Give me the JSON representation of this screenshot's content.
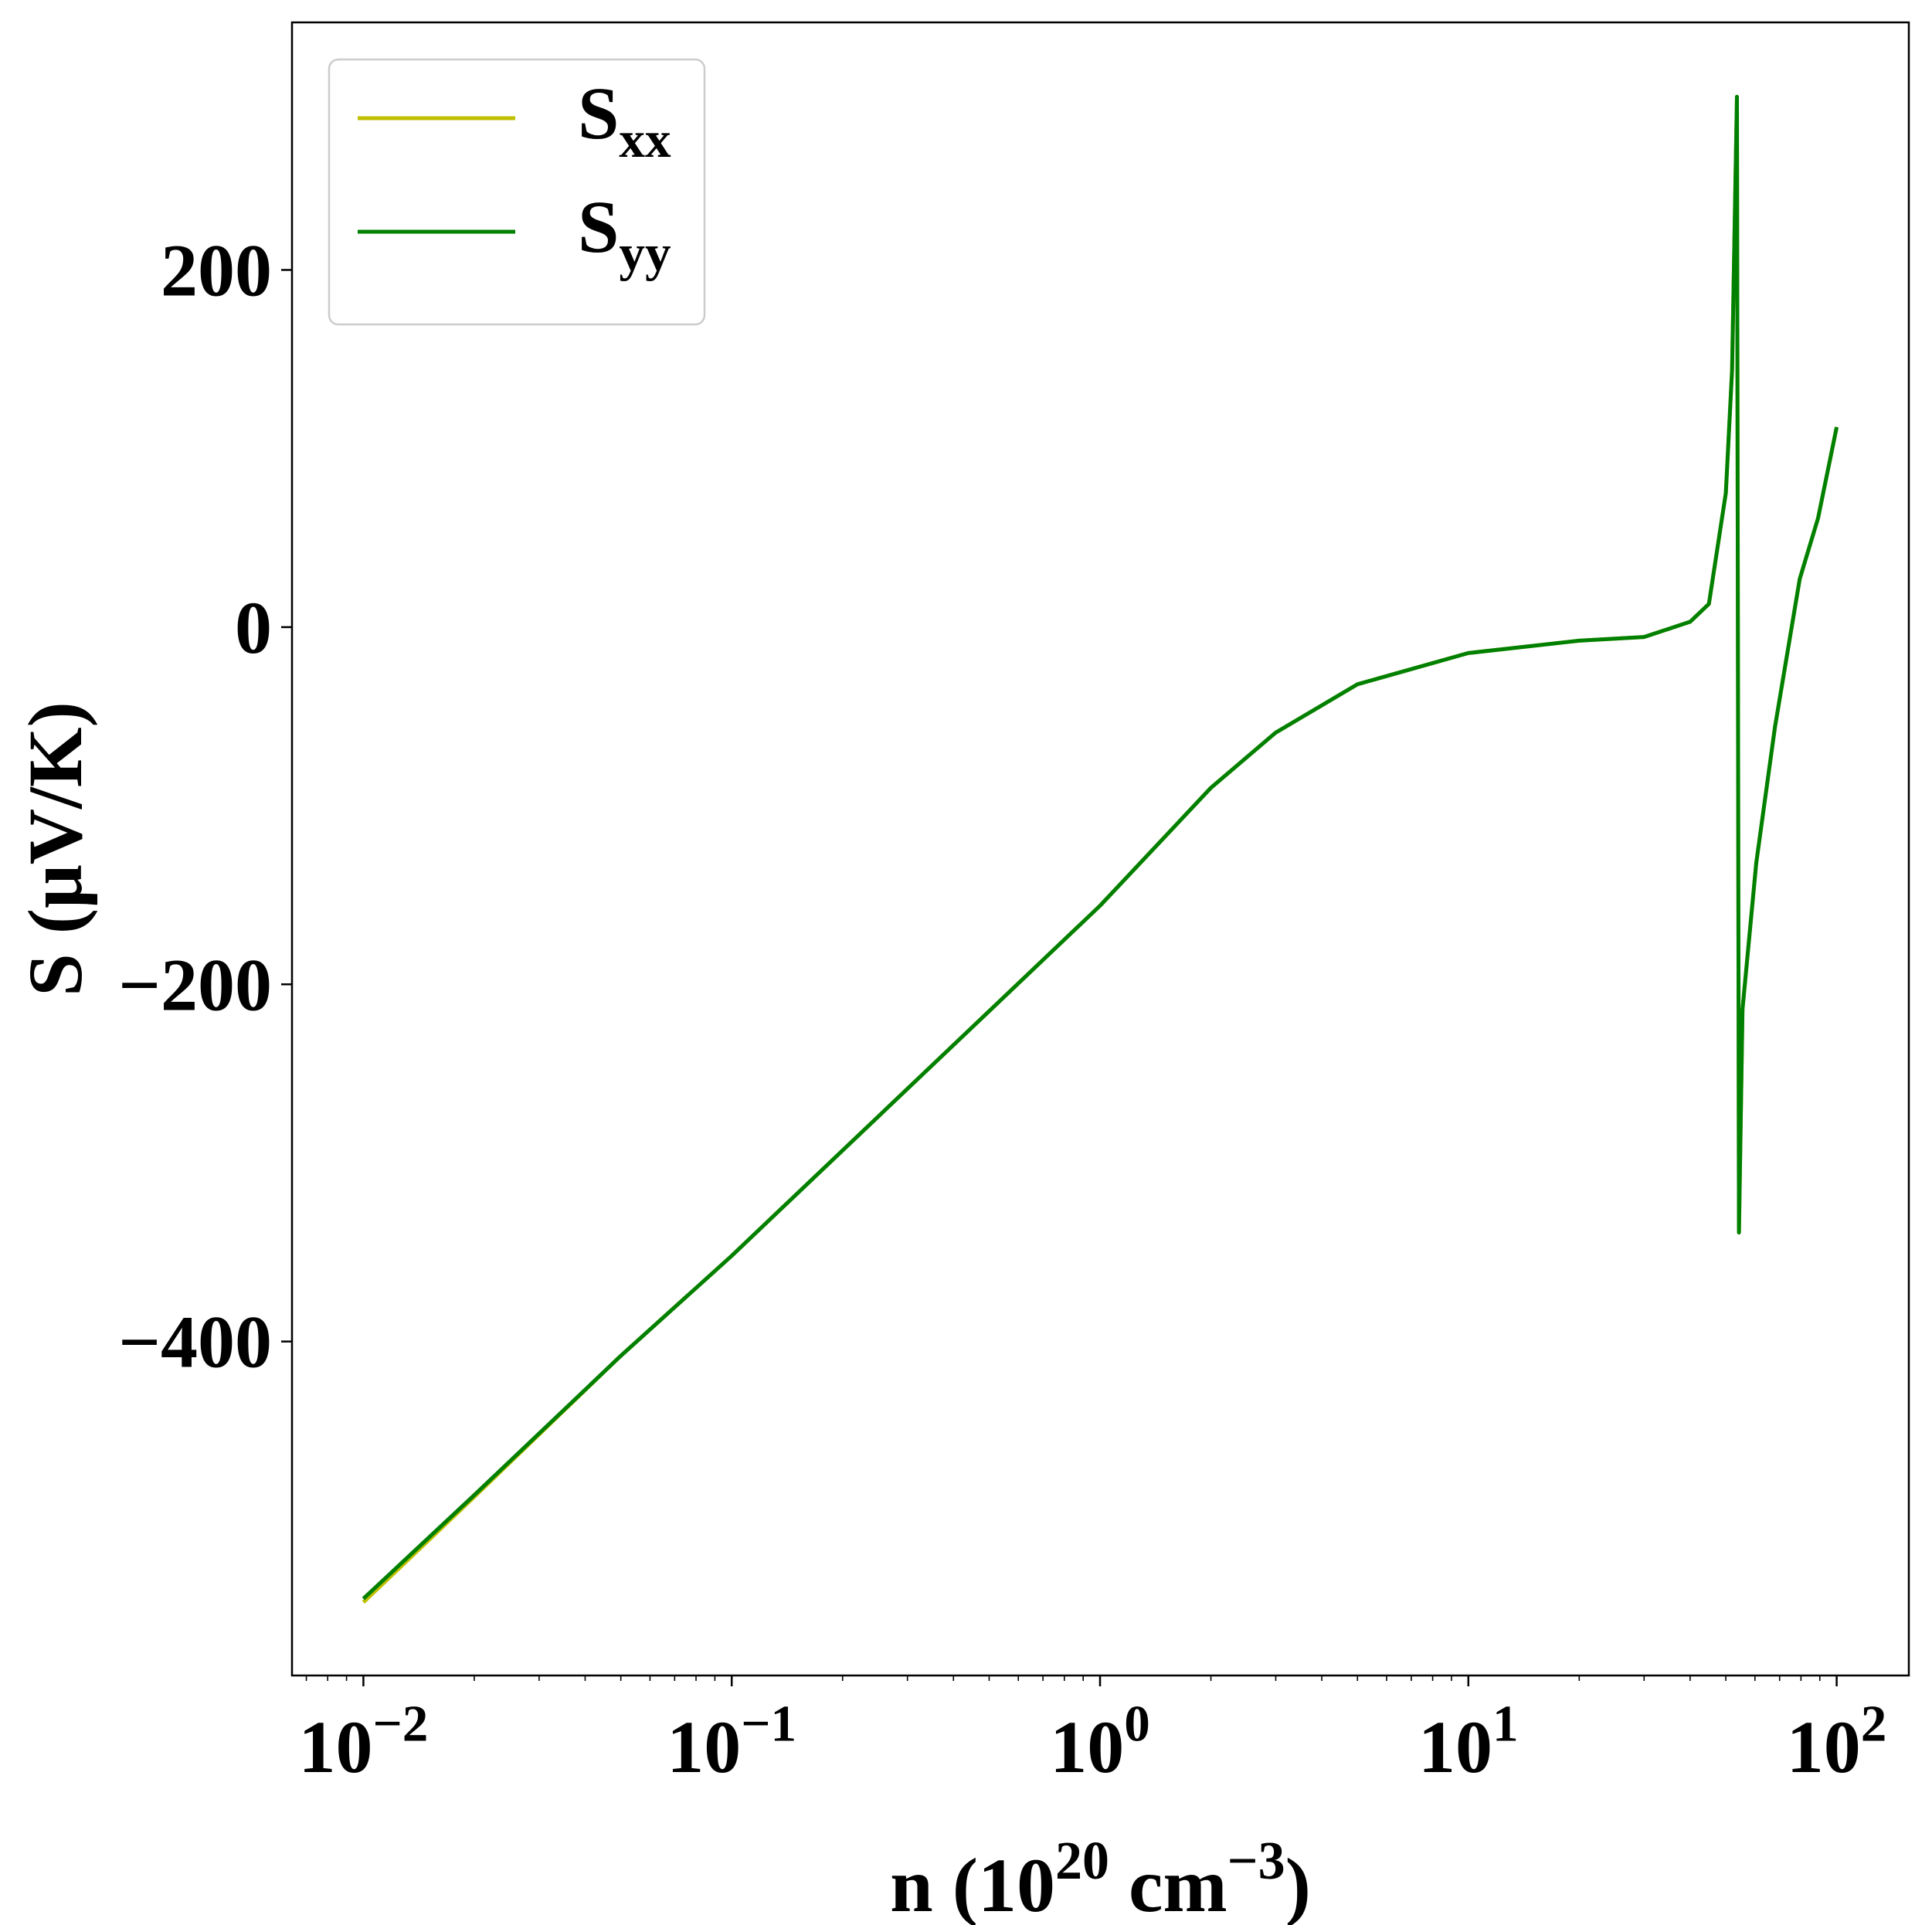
{
  "chart_data": {
    "type": "line",
    "xlabel": "n (10^{20} cm^{−3})",
    "ylabel": "S (μV/K)",
    "xscale": "log",
    "xlim": [
      0.0064,
      157
    ],
    "ylim": [
      -587,
      338.6
    ],
    "xticks": [
      {
        "value": 0.01,
        "label": "10^{−2}"
      },
      {
        "value": 0.1,
        "label": "10^{−1}"
      },
      {
        "value": 1,
        "label": "10^{0}"
      },
      {
        "value": 10,
        "label": "10^{1}"
      },
      {
        "value": 100,
        "label": "10^{2}"
      }
    ],
    "yticks": [
      {
        "value": -400,
        "label": "−400"
      },
      {
        "value": -200,
        "label": "−200"
      },
      0,
      200
    ],
    "legend": "upper left",
    "x": [
      0.01,
      0.02,
      0.05,
      0.1,
      0.2,
      0.5,
      1,
      2,
      3,
      5,
      10,
      20,
      30,
      40,
      45,
      50,
      52,
      53.6,
      54.3,
      55.5,
      60.5,
      68,
      79.4,
      89,
      100
    ],
    "series": [
      {
        "name": "S_{xx}",
        "color": "#bfbf00",
        "values": [
          -546,
          -487,
          -408,
          -352,
          -293,
          -215,
          -156,
          -90,
          -59,
          -32,
          -14.5,
          -7.6,
          -5.5,
          3,
          13,
          75,
          144,
          297,
          -339,
          -214,
          -132,
          -56,
          27,
          61,
          112
        ]
      },
      {
        "name": "S_{yy}",
        "color": "#008000",
        "values": [
          -544,
          -486,
          -408,
          -352,
          -293,
          -215,
          -156,
          -90,
          -59,
          -32,
          -14.5,
          -7.6,
          -5.5,
          3,
          13,
          75,
          144,
          297,
          -339,
          -214,
          -132,
          -56,
          27,
          61,
          112
        ]
      }
    ]
  }
}
